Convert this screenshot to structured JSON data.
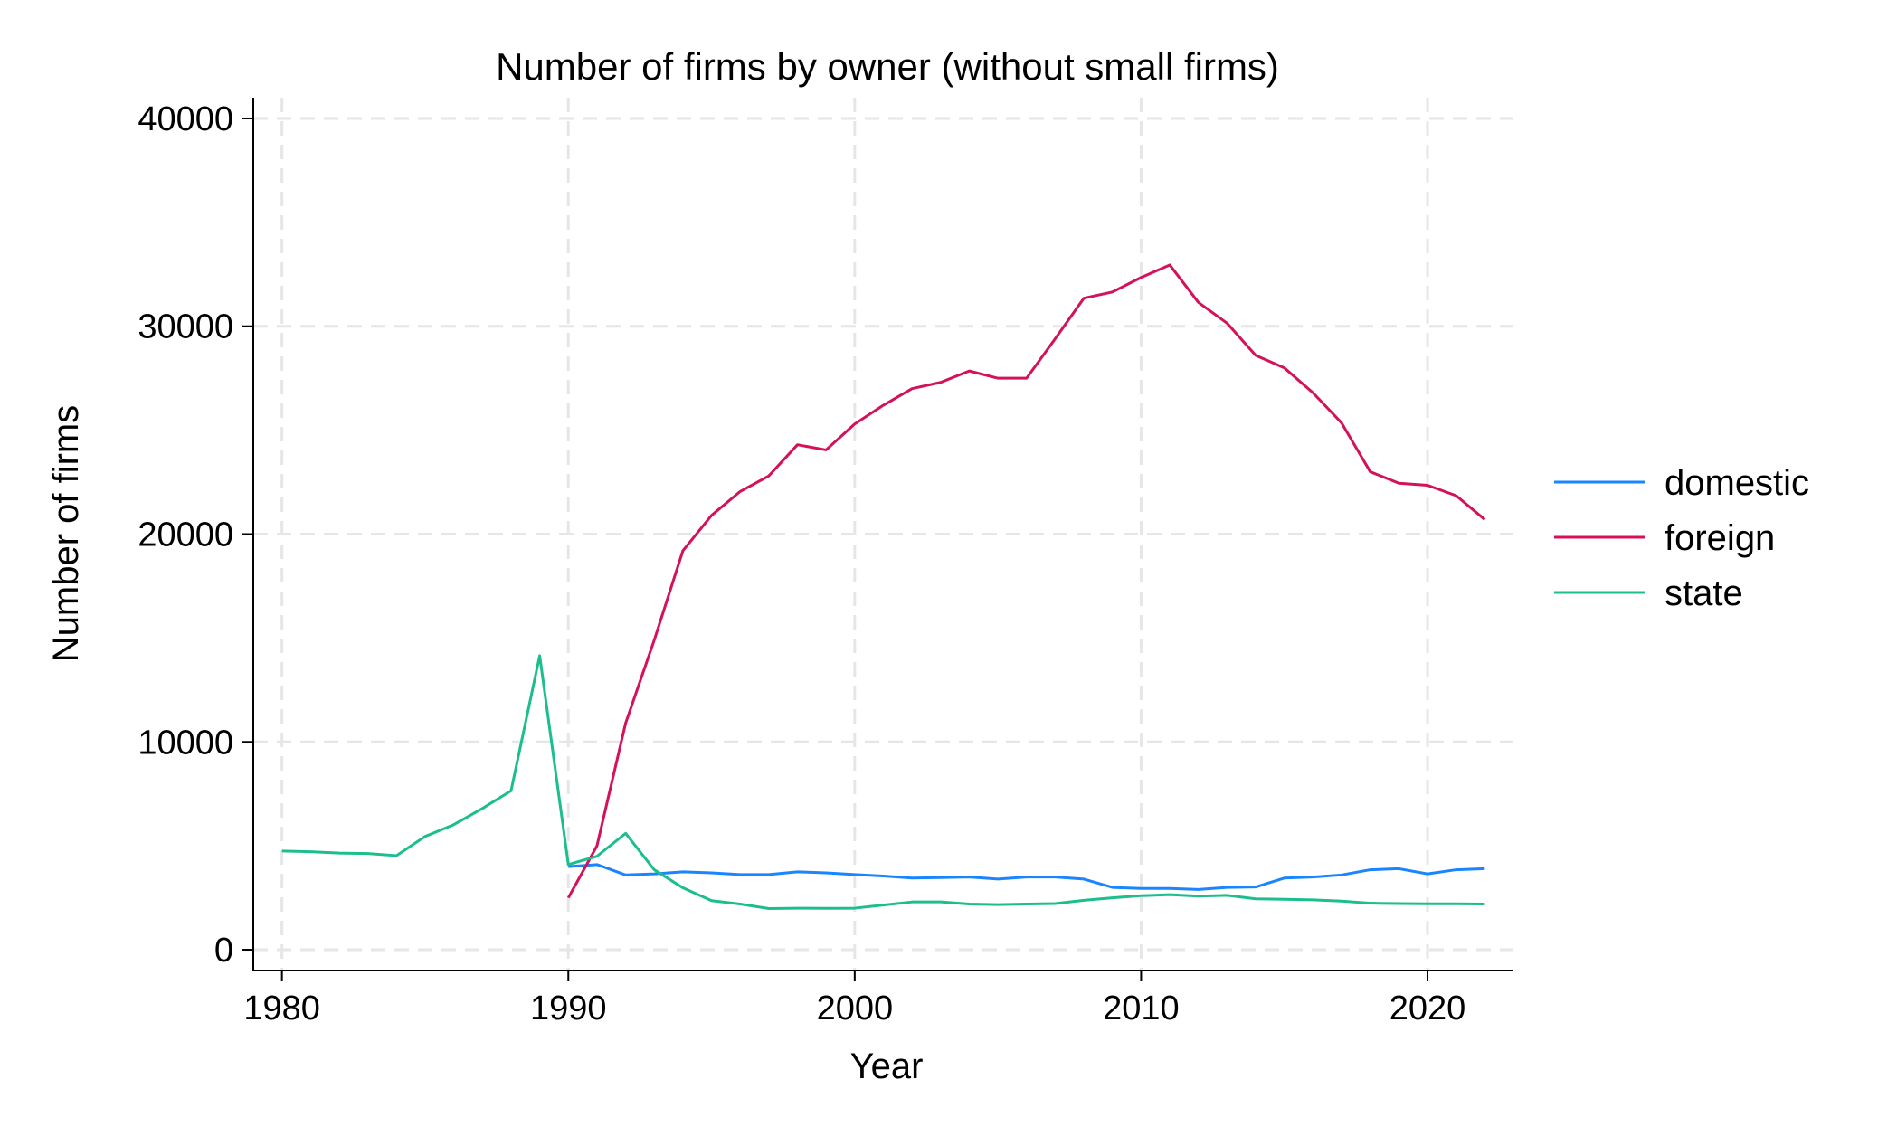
{
  "chart_data": {
    "type": "line",
    "title": "Number of firms by owner (without small firms)",
    "xlabel": "Year",
    "ylabel": "Number of firms",
    "xlim": [
      1979,
      2023
    ],
    "ylim": [
      -1000,
      41000
    ],
    "xticks": [
      1980,
      1990,
      2000,
      2010,
      2020
    ],
    "yticks": [
      0,
      10000,
      20000,
      30000,
      40000
    ],
    "grid": true,
    "legend": "right",
    "series": [
      {
        "name": "domestic",
        "color": "#1a85ff",
        "x": [
          1990,
          1991,
          1992,
          1993,
          1994,
          1995,
          1996,
          1997,
          1998,
          1999,
          2000,
          2001,
          2002,
          2003,
          2004,
          2005,
          2006,
          2007,
          2008,
          2009,
          2010,
          2011,
          2012,
          2013,
          2014,
          2015,
          2016,
          2017,
          2018,
          2019,
          2020,
          2021,
          2022
        ],
        "y": [
          4000,
          4100,
          3600,
          3650,
          3750,
          3700,
          3620,
          3620,
          3750,
          3700,
          3620,
          3550,
          3450,
          3470,
          3500,
          3400,
          3500,
          3500,
          3400,
          3000,
          2950,
          2950,
          2900,
          3000,
          3020,
          3450,
          3500,
          3600,
          3850,
          3900,
          3650,
          3850,
          3900
        ]
      },
      {
        "name": "foreign",
        "color": "#d41159",
        "x": [
          1990,
          1991,
          1992,
          1993,
          1994,
          1995,
          1996,
          1997,
          1998,
          1999,
          2000,
          2001,
          2002,
          2003,
          2004,
          2005,
          2006,
          2007,
          2008,
          2009,
          2010,
          2011,
          2012,
          2013,
          2014,
          2015,
          2016,
          2017,
          2018,
          2019,
          2020,
          2021,
          2022
        ],
        "y": [
          2500,
          5000,
          10900,
          14900,
          19200,
          20900,
          22050,
          22800,
          24300,
          24050,
          25300,
          26200,
          27000,
          27300,
          27850,
          27500,
          27500,
          29400,
          31350,
          31650,
          32350,
          32950,
          31150,
          30150,
          28600,
          28000,
          26800,
          25350,
          23000,
          22450,
          22350,
          21850,
          20700
        ]
      },
      {
        "name": "state",
        "color": "#1bbe8c",
        "x": [
          1980,
          1981,
          1982,
          1983,
          1984,
          1985,
          1986,
          1987,
          1988,
          1989,
          1990,
          1991,
          1992,
          1993,
          1994,
          1995,
          1996,
          1997,
          1998,
          1999,
          2000,
          2001,
          2002,
          2003,
          2004,
          2005,
          2006,
          2007,
          2008,
          2009,
          2010,
          2011,
          2012,
          2013,
          2014,
          2015,
          2016,
          2017,
          2018,
          2019,
          2020,
          2021,
          2022
        ],
        "y": [
          4750,
          4720,
          4650,
          4630,
          4530,
          5450,
          6020,
          6800,
          7650,
          14150,
          4100,
          4500,
          5600,
          3850,
          2980,
          2360,
          2200,
          1980,
          2000,
          1990,
          2000,
          2150,
          2300,
          2300,
          2200,
          2170,
          2200,
          2220,
          2380,
          2500,
          2600,
          2650,
          2580,
          2620,
          2450,
          2430,
          2400,
          2340,
          2240,
          2220,
          2210,
          2210,
          2200
        ]
      }
    ]
  }
}
